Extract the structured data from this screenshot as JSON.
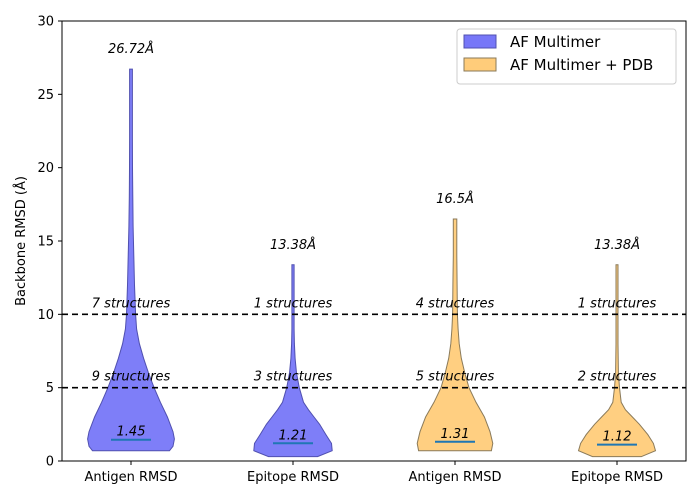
{
  "chart_data": {
    "type": "violin",
    "ylabel": "Backbone RMSD (Å)",
    "ylim": [
      0,
      30
    ],
    "yticks": [
      "0",
      "5",
      "10",
      "15",
      "20",
      "25",
      "30"
    ],
    "categories": [
      "Antigen RMSD",
      "Epitope RMSD",
      "Antigen RMSD",
      "Epitope RMSD"
    ],
    "series": [
      {
        "name": "AF Multimer",
        "color": "#7777f8",
        "edge": "#5050b0"
      },
      {
        "name": "AF Multimer + PDB",
        "color": "#ffcc7a",
        "edge": "#8a7a5a"
      }
    ],
    "thresholds": [
      10,
      5
    ],
    "violins": [
      {
        "series": 0,
        "min": 0.7,
        "max": 26.72,
        "median": 1.45,
        "max_label": "26.72Å",
        "median_label": "1.45",
        "above10_label": "7 structures",
        "above5_label": "9 structures",
        "profile": [
          [
            0.7,
            0.55
          ],
          [
            1.0,
            0.6
          ],
          [
            1.5,
            0.62
          ],
          [
            2.0,
            0.6
          ],
          [
            3.0,
            0.52
          ],
          [
            4.0,
            0.42
          ],
          [
            5.0,
            0.33
          ],
          [
            6.0,
            0.25
          ],
          [
            7.0,
            0.18
          ],
          [
            8.0,
            0.12
          ],
          [
            9.0,
            0.08
          ],
          [
            10.0,
            0.065
          ],
          [
            12.0,
            0.05
          ],
          [
            14.0,
            0.04
          ],
          [
            16.0,
            0.03
          ],
          [
            18.0,
            0.025
          ],
          [
            20.0,
            0.022
          ],
          [
            22.0,
            0.02
          ],
          [
            24.0,
            0.02
          ],
          [
            26.72,
            0.02
          ]
        ]
      },
      {
        "series": 0,
        "min": 0.3,
        "max": 13.38,
        "median": 1.21,
        "max_label": "13.38Å",
        "median_label": "1.21",
        "above10_label": "1 structures",
        "above5_label": "3 structures",
        "profile": [
          [
            0.3,
            0.35
          ],
          [
            0.7,
            0.56
          ],
          [
            1.2,
            0.55
          ],
          [
            1.8,
            0.47
          ],
          [
            2.5,
            0.38
          ],
          [
            3.0,
            0.3
          ],
          [
            3.5,
            0.22
          ],
          [
            4.0,
            0.15
          ],
          [
            5.0,
            0.09
          ],
          [
            6.0,
            0.05
          ],
          [
            7.0,
            0.03
          ],
          [
            8.0,
            0.02
          ],
          [
            9.0,
            0.015
          ],
          [
            10.0,
            0.015
          ],
          [
            11.0,
            0.015
          ],
          [
            12.0,
            0.015
          ],
          [
            13.38,
            0.015
          ]
        ]
      },
      {
        "series": 1,
        "min": 0.7,
        "max": 16.5,
        "median": 1.31,
        "max_label": "16.5Å",
        "median_label": "1.31",
        "above10_label": "4 structures",
        "above5_label": "5 structures",
        "profile": [
          [
            0.7,
            0.52
          ],
          [
            1.2,
            0.54
          ],
          [
            2.0,
            0.5
          ],
          [
            3.0,
            0.42
          ],
          [
            4.0,
            0.3
          ],
          [
            5.0,
            0.2
          ],
          [
            6.0,
            0.14
          ],
          [
            7.0,
            0.09
          ],
          [
            8.0,
            0.06
          ],
          [
            9.0,
            0.045
          ],
          [
            10.0,
            0.035
          ],
          [
            12.0,
            0.03
          ],
          [
            14.0,
            0.025
          ],
          [
            16.5,
            0.025
          ]
        ]
      },
      {
        "series": 1,
        "min": 0.3,
        "max": 13.38,
        "median": 1.12,
        "max_label": "13.38Å",
        "median_label": "1.12",
        "above10_label": "1 structures",
        "above5_label": "2 structures",
        "profile": [
          [
            0.3,
            0.35
          ],
          [
            0.7,
            0.55
          ],
          [
            1.2,
            0.52
          ],
          [
            1.8,
            0.44
          ],
          [
            2.5,
            0.32
          ],
          [
            3.0,
            0.22
          ],
          [
            3.5,
            0.12
          ],
          [
            4.0,
            0.06
          ],
          [
            5.0,
            0.035
          ],
          [
            6.0,
            0.02
          ],
          [
            8.0,
            0.015
          ],
          [
            10.0,
            0.015
          ],
          [
            12.0,
            0.015
          ],
          [
            13.38,
            0.015
          ]
        ]
      }
    ],
    "legend_position": "top-right",
    "grid": false
  }
}
